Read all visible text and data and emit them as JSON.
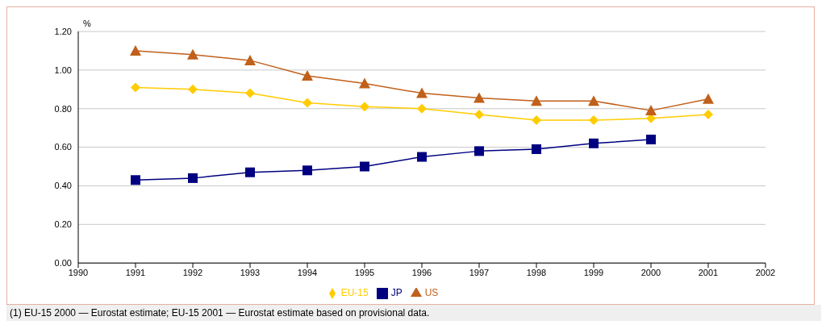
{
  "chart_data": {
    "type": "line",
    "ylabel": "%",
    "x": [
      1991,
      1992,
      1993,
      1994,
      1995,
      1996,
      1997,
      1998,
      1999,
      2000,
      2001
    ],
    "series": [
      {
        "name": "EU-15",
        "color": "#ffcc00",
        "marker": "diamond",
        "values": [
          0.91,
          0.9,
          0.88,
          0.83,
          0.81,
          0.8,
          0.77,
          0.74,
          0.74,
          0.75,
          0.77
        ]
      },
      {
        "name": "JP",
        "color": "#000080",
        "marker": "square",
        "values": [
          0.43,
          0.44,
          0.47,
          0.48,
          0.5,
          0.55,
          0.58,
          0.59,
          0.62,
          0.64,
          null
        ]
      },
      {
        "name": "US",
        "color": "#c0601a",
        "marker": "triangle",
        "values": [
          1.1,
          1.08,
          1.05,
          0.97,
          0.93,
          0.88,
          0.855,
          0.84,
          0.84,
          0.79,
          0.85
        ]
      }
    ],
    "xlim": [
      1990,
      2002
    ],
    "xticks": [
      1990,
      1991,
      1992,
      1993,
      1994,
      1995,
      1996,
      1997,
      1998,
      1999,
      2000,
      2001,
      2002
    ],
    "ylim": [
      0,
      1.2
    ],
    "yticks": [
      {
        "value": 0,
        "label": "0.00"
      },
      {
        "value": 0.2,
        "label": "0.20"
      },
      {
        "value": 0.4,
        "label": "0.40"
      },
      {
        "value": 0.6,
        "label": "0.60"
      },
      {
        "value": 0.8,
        "label": "0.80"
      },
      {
        "value": 1,
        "label": "1.00"
      },
      {
        "value": 1.2,
        "label": "1.20"
      }
    ],
    "grid": "y",
    "legend": "bottom",
    "annotations": [
      "(1)   EU-15 2000 — Eurostat estimate; EU-15 2001 — Eurostat estimate based on provisional data."
    ]
  }
}
